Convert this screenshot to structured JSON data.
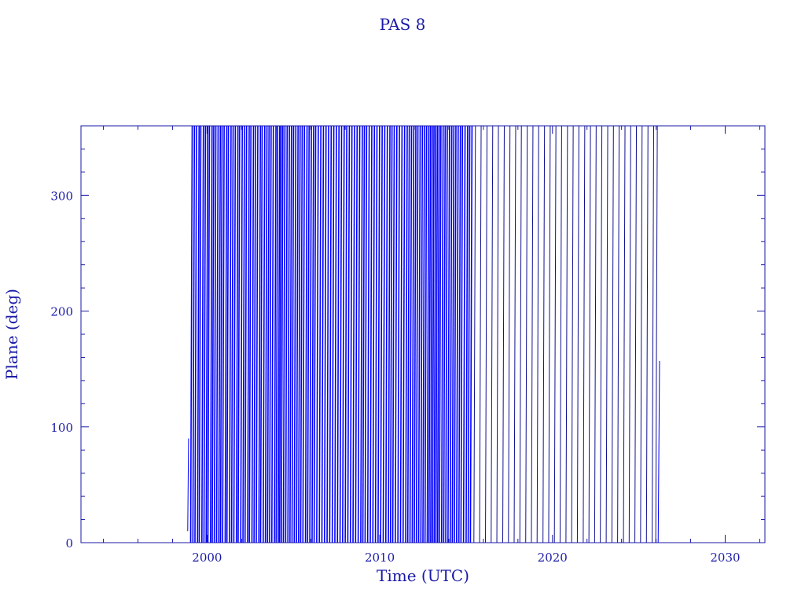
{
  "chart_data": {
    "type": "line",
    "title": "PAS 8",
    "xlabel": "Time (UTC)",
    "ylabel": "Plane (deg)",
    "xlim": [
      1992.7,
      2032.3
    ],
    "ylim": [
      0,
      360
    ],
    "x_ticks": [
      2000,
      2010,
      2020,
      2030
    ],
    "y_ticks": [
      0,
      100,
      200,
      300
    ],
    "x_minor_step": 2,
    "y_minor_step": 20,
    "grid": false,
    "colors": {
      "axes": "#1a1aa8",
      "series": "#0000ff",
      "series_late": "#101090"
    },
    "series": [
      {
        "segments_partial": [
          [
            1998.88,
            10,
            1998.93,
            90
          ],
          [
            2026.12,
            0,
            2026.2,
            157
          ]
        ],
        "wrap_starts_early": [
          1999.05,
          1999.18,
          1999.3,
          1999.45,
          1999.55,
          1999.7,
          1999.82,
          1999.95,
          2000.05,
          2000.2,
          2000.3,
          2000.42,
          2000.55,
          2000.68,
          2000.78,
          2000.9,
          2001.05,
          2001.15,
          2001.3,
          2001.42,
          2001.55,
          2001.7,
          2001.8,
          2001.95,
          2002.08,
          2002.2,
          2002.35,
          2002.45,
          2002.6,
          2002.72,
          2002.85,
          2003.0,
          2003.1,
          2003.25,
          2003.38,
          2003.5,
          2003.62,
          2003.75,
          2003.9,
          2004.0,
          2004.12,
          2004.2,
          2004.3,
          2004.42,
          2004.55,
          2004.68,
          2004.8,
          2004.92,
          2005.05,
          2005.18,
          2005.3,
          2005.42,
          2005.55,
          2005.7,
          2005.82,
          2005.95,
          2006.08,
          2006.2,
          2006.35,
          2006.5,
          2006.65,
          2006.8,
          2006.95,
          2007.1,
          2007.25,
          2007.4,
          2007.55,
          2007.7,
          2007.85,
          2008.0,
          2008.15,
          2008.3,
          2008.45,
          2008.6,
          2008.75,
          2008.9,
          2009.02,
          2009.15,
          2009.3,
          2009.45,
          2009.6,
          2009.75,
          2009.9,
          2010.05,
          2010.2,
          2010.35,
          2010.5,
          2010.62,
          2010.75,
          2010.9,
          2011.05,
          2011.2,
          2011.35,
          2011.5,
          2011.62,
          2011.75,
          2011.88,
          2012.0,
          2012.12,
          2012.25,
          2012.38,
          2012.5,
          2012.62,
          2012.75,
          2012.85,
          2012.95,
          2013.05,
          2013.15,
          2013.25,
          2013.35,
          2013.45,
          2013.58,
          2013.7,
          2013.82,
          2013.95,
          2014.08,
          2014.2,
          2014.32,
          2014.45,
          2014.58,
          2014.7,
          2014.85,
          2015.0,
          2015.12,
          2015.25
        ],
        "wrap_starts_late": [
          2015.45,
          2015.78,
          2016.12,
          2016.45,
          2016.78,
          2017.12,
          2017.45,
          2017.78,
          2018.11,
          2018.45,
          2018.78,
          2019.11,
          2019.45,
          2019.78,
          2020.11,
          2020.44,
          2020.78,
          2021.11,
          2021.44,
          2021.78,
          2022.11,
          2022.44,
          2022.77,
          2023.11,
          2023.44,
          2023.77,
          2024.11,
          2024.44,
          2024.77,
          2025.1,
          2025.44,
          2025.77,
          2025.98
        ],
        "rise_span_years": 0.09
      }
    ]
  }
}
